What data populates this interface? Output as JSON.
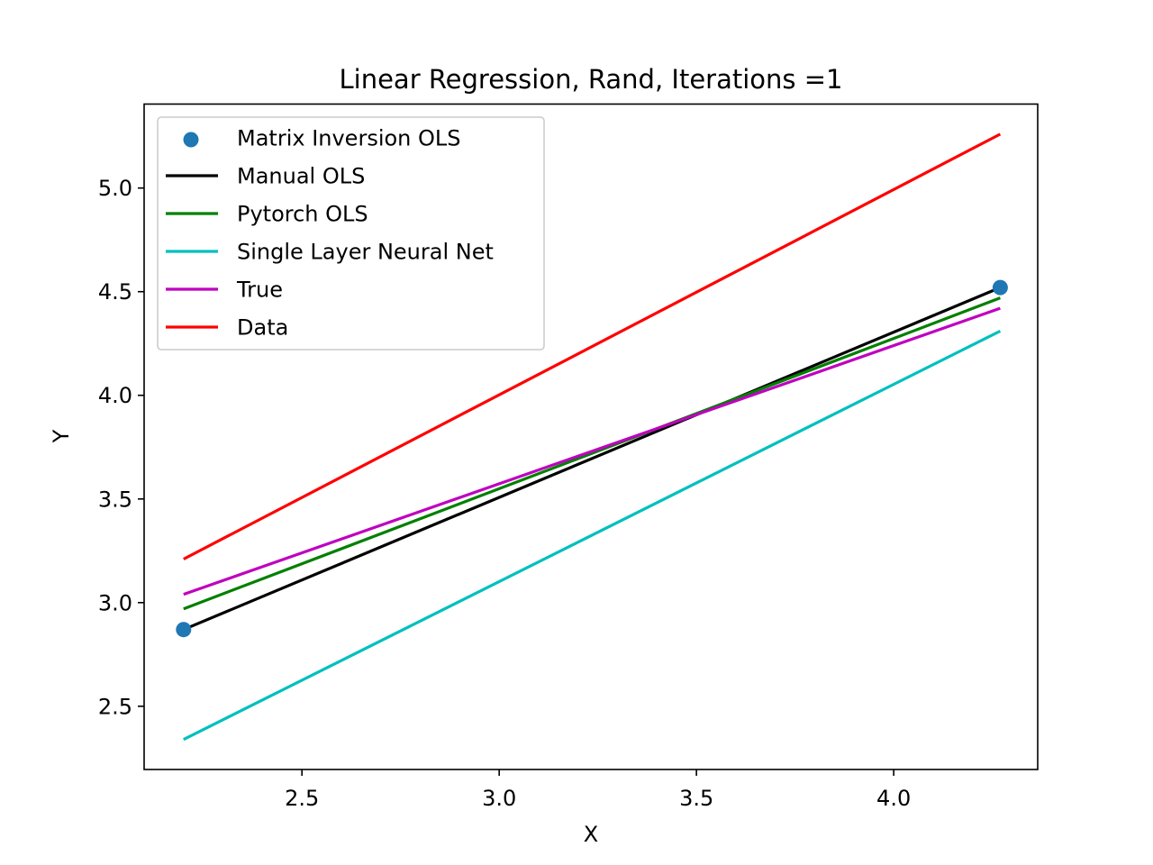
{
  "chart_data": {
    "type": "line",
    "title": "Linear Regression, Rand, Iterations =1",
    "xlabel": "X",
    "ylabel": "Y",
    "xlim": [
      2.1,
      4.365
    ],
    "ylim": [
      2.195,
      5.405
    ],
    "xticks": [
      2.5,
      3.0,
      3.5,
      4.0
    ],
    "xtick_labels": [
      "2.5",
      "3.0",
      "3.5",
      "4.0"
    ],
    "yticks": [
      2.5,
      3.0,
      3.5,
      4.0,
      4.5,
      5.0
    ],
    "ytick_labels": [
      "2.5",
      "3.0",
      "3.5",
      "4.0",
      "4.5",
      "5.0"
    ],
    "grid": false,
    "legend_position": "upper-left",
    "series": [
      {
        "name": "Matrix Inversion OLS",
        "kind": "scatter",
        "color": "#1f77b4",
        "x": [
          2.2,
          4.27
        ],
        "y": [
          2.87,
          4.52
        ]
      },
      {
        "name": "Manual OLS",
        "kind": "line",
        "color": "#000000",
        "x": [
          2.2,
          4.27
        ],
        "y": [
          2.87,
          4.52
        ]
      },
      {
        "name": "Pytorch OLS",
        "kind": "line",
        "color": "#008000",
        "x": [
          2.2,
          4.27
        ],
        "y": [
          2.97,
          4.47
        ]
      },
      {
        "name": "Single Layer Neural Net",
        "kind": "line",
        "color": "#00bfbf",
        "x": [
          2.2,
          4.27
        ],
        "y": [
          2.34,
          4.31
        ]
      },
      {
        "name": "True",
        "kind": "line",
        "color": "#bf00bf",
        "x": [
          2.2,
          4.27
        ],
        "y": [
          3.04,
          4.42
        ]
      },
      {
        "name": "Data",
        "kind": "line",
        "color": "#ff0000",
        "x": [
          2.2,
          4.27
        ],
        "y": [
          3.21,
          5.26
        ]
      }
    ]
  }
}
